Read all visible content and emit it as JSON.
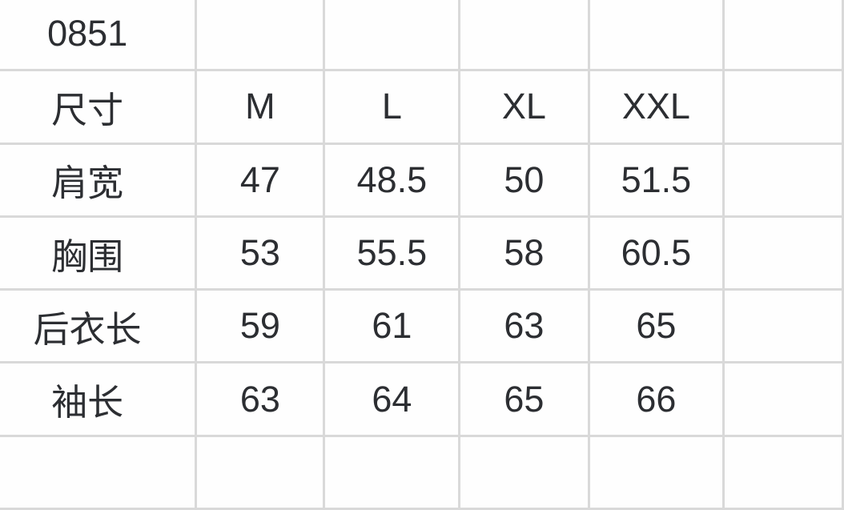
{
  "table": {
    "product_code": "0851",
    "header_row": {
      "label": "尺寸",
      "sizes": [
        "M",
        "L",
        "XL",
        "XXL"
      ]
    },
    "measurement_rows": [
      {
        "label": "肩宽",
        "values": [
          "47",
          "48.5",
          "50",
          "51.5"
        ]
      },
      {
        "label": "胸围",
        "values": [
          "53",
          "55.5",
          "58",
          "60.5"
        ]
      },
      {
        "label": "后衣长",
        "values": [
          "59",
          "61",
          "63",
          "65"
        ]
      },
      {
        "label": "袖长",
        "values": [
          "63",
          "64",
          "65",
          "66"
        ]
      }
    ],
    "colors": {
      "grid_line": "#d9d9d9",
      "text": "#2c2e32",
      "cell_background": "#fefefe"
    }
  }
}
